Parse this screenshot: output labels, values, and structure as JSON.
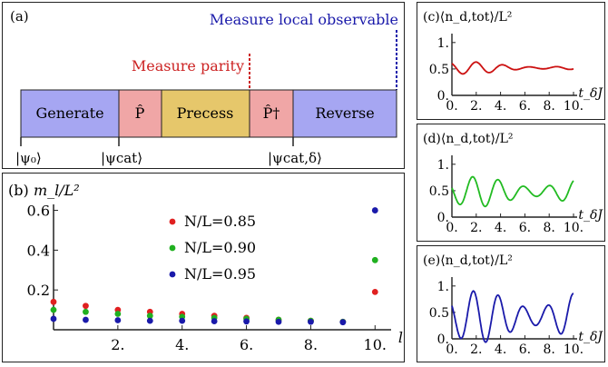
{
  "panel_a": {
    "label": "(a)",
    "measure_local": "Measure local observable",
    "measure_parity": "Measure parity",
    "blocks": [
      "Generate",
      "P̂",
      "Precess",
      "P̂†",
      "Reverse"
    ],
    "states": [
      "|ψ₀⟩",
      "|ψcat⟩",
      "|ψcat,δ⟩"
    ],
    "colors": {
      "generate": "#a6a6f2",
      "p": "#f0a6a6",
      "precess": "#e6c76b",
      "reverse": "#a6a6f2",
      "parity_line": "#cc2222",
      "local_line": "#1a1aaa"
    }
  },
  "panel_b": {
    "label": "(b)",
    "ylabel": "m_l/L²",
    "xlabel": "l",
    "chart_data": {
      "type": "scatter",
      "xlim": [
        0,
        10.5
      ],
      "ylim": [
        0,
        0.63
      ],
      "x_ticks": [
        "2.",
        "4.",
        "6.",
        "8.",
        "10."
      ],
      "y_ticks": [
        "0.2",
        "0.4",
        "0.6"
      ],
      "series": [
        {
          "name": "N/L=0.85",
          "color": "#e02020",
          "x": [
            0,
            1,
            2,
            3,
            4,
            5,
            6,
            7,
            8,
            9,
            10
          ],
          "y": [
            0.14,
            0.12,
            0.1,
            0.09,
            0.08,
            0.07,
            0.06,
            0.05,
            0.045,
            0.04,
            0.19
          ]
        },
        {
          "name": "N/L=0.90",
          "color": "#20b020",
          "x": [
            0,
            1,
            2,
            3,
            4,
            5,
            6,
            7,
            8,
            9,
            10
          ],
          "y": [
            0.1,
            0.09,
            0.08,
            0.07,
            0.065,
            0.06,
            0.055,
            0.05,
            0.045,
            0.04,
            0.35
          ]
        },
        {
          "name": "N/L=0.95",
          "color": "#1a1aaa",
          "x": [
            0,
            1,
            2,
            3,
            4,
            5,
            6,
            7,
            8,
            9,
            10
          ],
          "y": [
            0.055,
            0.05,
            0.048,
            0.045,
            0.045,
            0.043,
            0.042,
            0.04,
            0.04,
            0.038,
            0.6
          ]
        }
      ]
    }
  },
  "small_panels": [
    {
      "label": "(c)",
      "title": "⟨n_d,tot⟩/L²",
      "color": "#cc1111",
      "chart_data": {
        "type": "line",
        "xlim": [
          0,
          10
        ],
        "ylim": [
          0,
          1.1
        ],
        "x_ticks": [
          "0.",
          "2.",
          "4.",
          "6.",
          "8.",
          "10."
        ],
        "y_ticks": [
          "0.",
          "0.5",
          "1."
        ],
        "xlabel": "t_δJ",
        "model": {
          "base": 0.52,
          "amp": 0.1,
          "period": 2.2,
          "decay": 0.15,
          "phase": 0.6
        }
      }
    },
    {
      "label": "(d)",
      "title": "⟨n_d,tot⟩/L²",
      "color": "#22bb22",
      "chart_data": {
        "type": "line",
        "xlim": [
          0,
          10
        ],
        "ylim": [
          0,
          1.1
        ],
        "x_ticks": [
          "0.",
          "2.",
          "4.",
          "6.",
          "8.",
          "10."
        ],
        "y_ticks": [
          "0.",
          "0.5",
          "1."
        ],
        "xlabel": "t_δJ",
        "model": {
          "base": 0.48,
          "amp": 0.2,
          "period": 2.1,
          "decay": 0.02,
          "phase": 1.2
        }
      }
    },
    {
      "label": "(e)",
      "title": "⟨n_d,tot⟩/L²",
      "color": "#1a1aaa",
      "chart_data": {
        "type": "line",
        "xlim": [
          0,
          10
        ],
        "ylim": [
          0,
          1.1
        ],
        "x_ticks": [
          "0.",
          "2.",
          "4.",
          "6.",
          "8.",
          "10."
        ],
        "y_ticks": [
          "0.",
          "0.5",
          "1."
        ],
        "xlabel": "t_δJ",
        "model": {
          "base": 0.42,
          "amp": 0.33,
          "period": 2.05,
          "decay": 0.0,
          "phase": 0.9
        }
      }
    }
  ]
}
